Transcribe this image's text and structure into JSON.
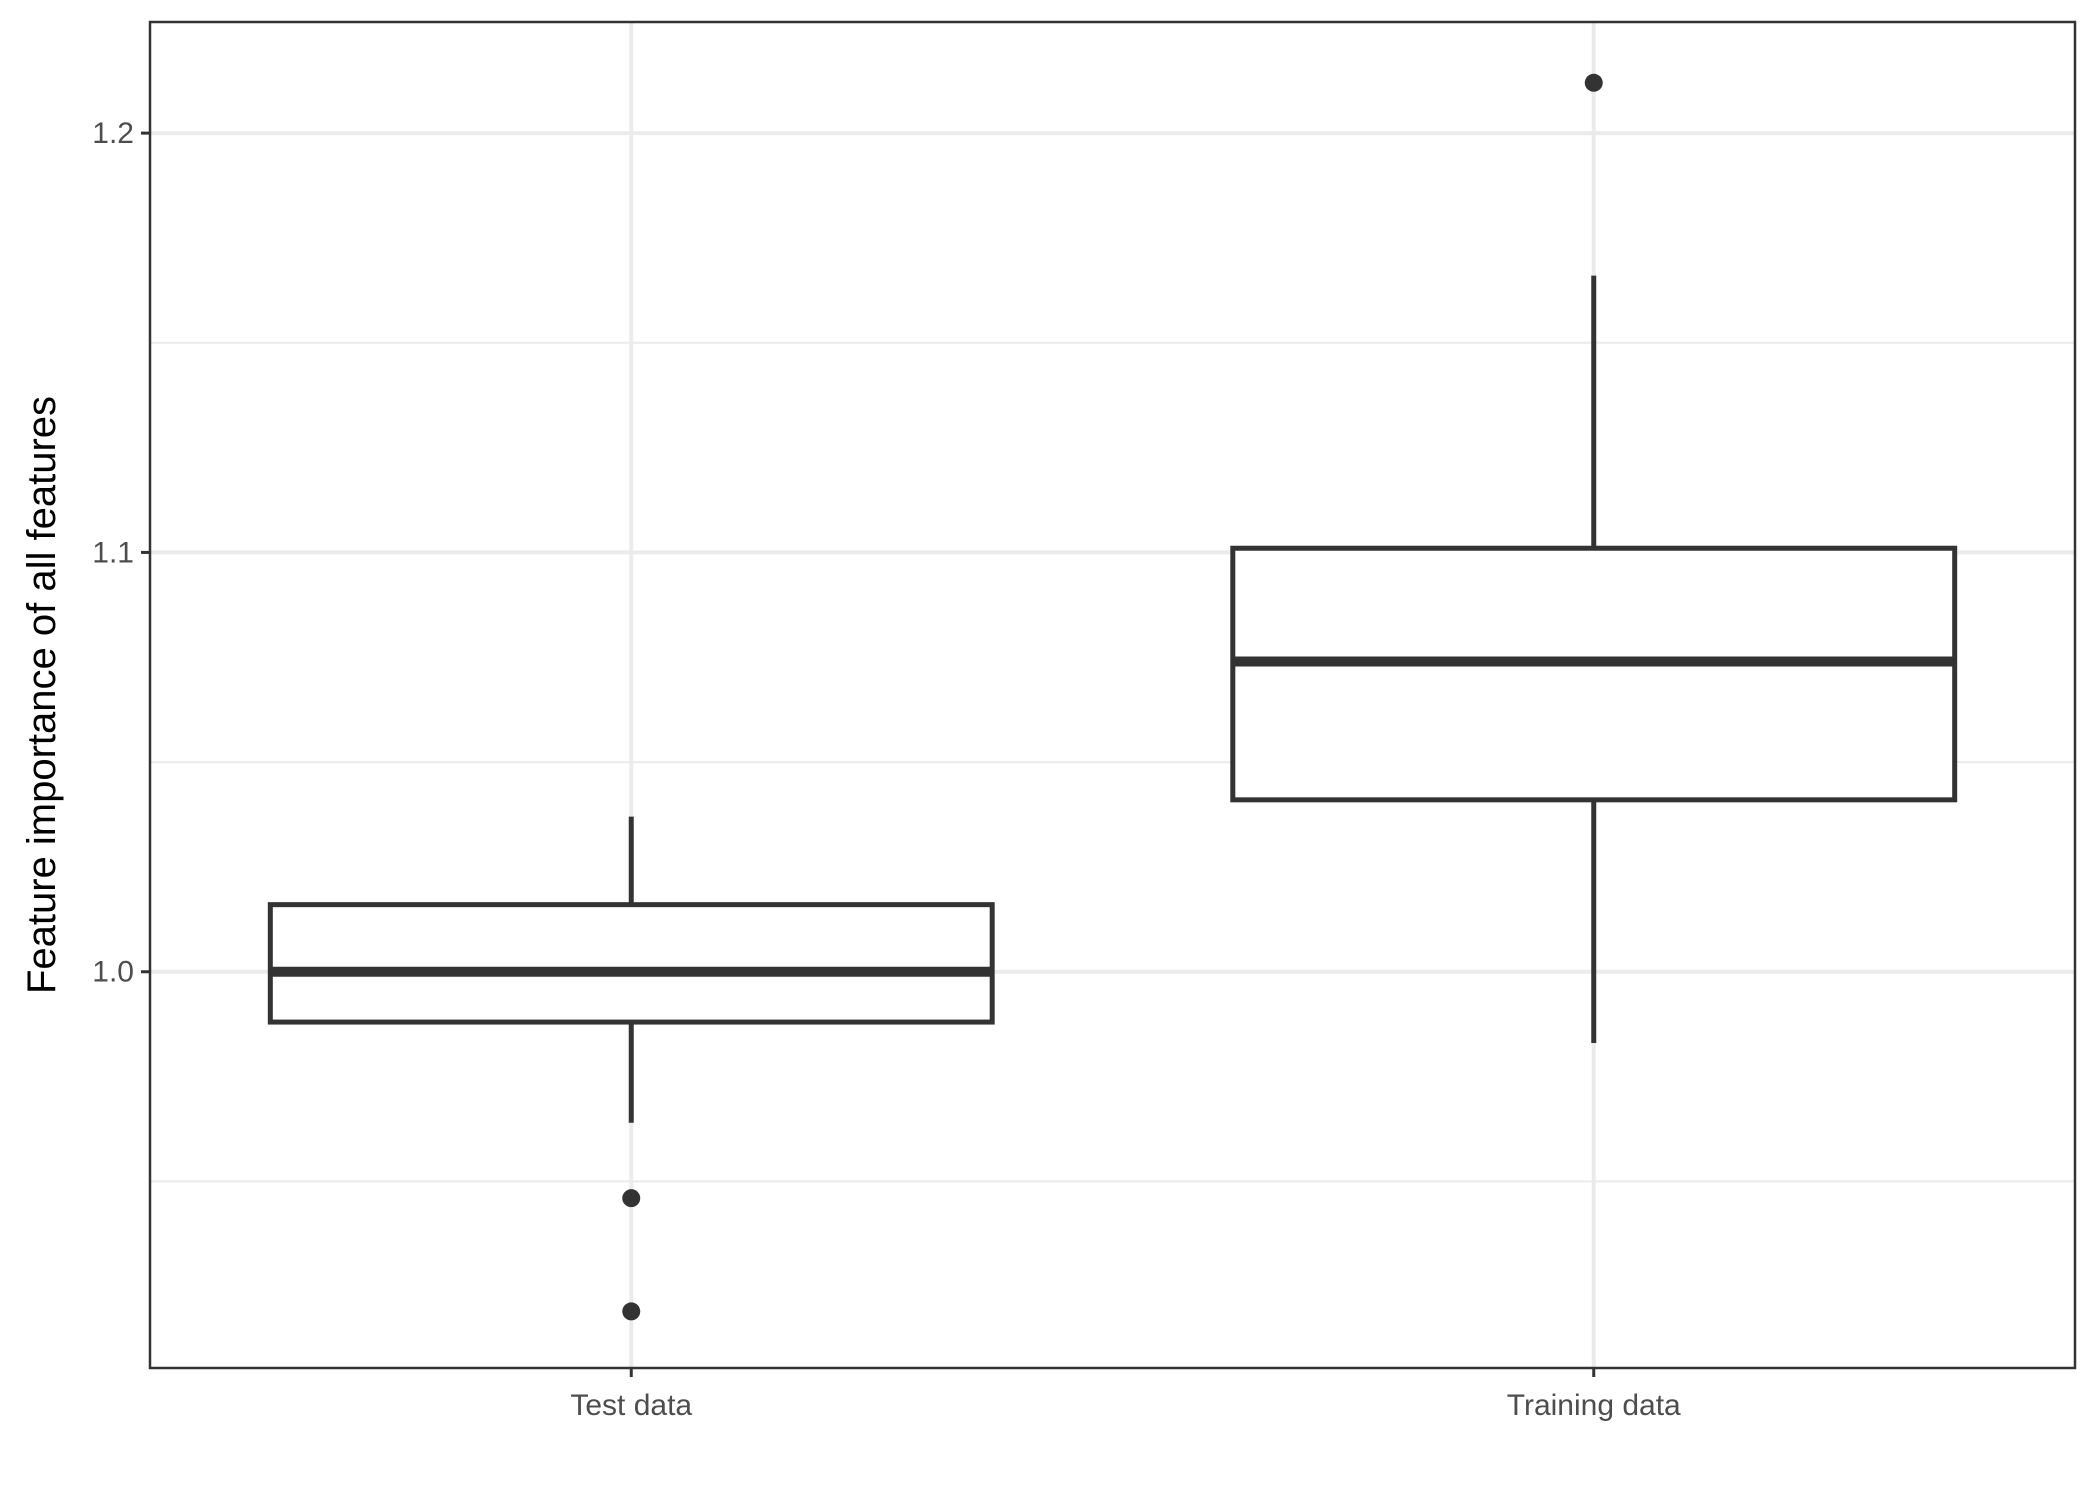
{
  "chart_data": {
    "type": "boxplot",
    "title": "",
    "xlabel": "",
    "ylabel": "Feature importance of all features",
    "ylim": [
      0.9055,
      1.2265
    ],
    "y_ticks": [
      1.0,
      1.1,
      1.2
    ],
    "y_tick_labels": [
      "1.0",
      "1.1",
      "1.2"
    ],
    "y_minor_ticks": [
      0.95,
      1.05,
      1.15
    ],
    "grid": true,
    "legend": "none",
    "categories": [
      "Test data",
      "Training data"
    ],
    "boxes": [
      {
        "category": "Test data",
        "whisker_low": 0.964,
        "q1": 0.988,
        "median": 1.0,
        "q3": 1.016,
        "whisker_high": 1.037,
        "outliers": [
          0.946,
          0.919
        ]
      },
      {
        "category": "Training data",
        "whisker_low": 0.983,
        "q1": 1.041,
        "median": 1.074,
        "q3": 1.101,
        "whisker_high": 1.166,
        "outliers": [
          1.212
        ]
      }
    ],
    "colors": {
      "line": "#333333",
      "grid": "#ebebeb",
      "panel_border": "#333333",
      "background": "#ffffff"
    }
  }
}
